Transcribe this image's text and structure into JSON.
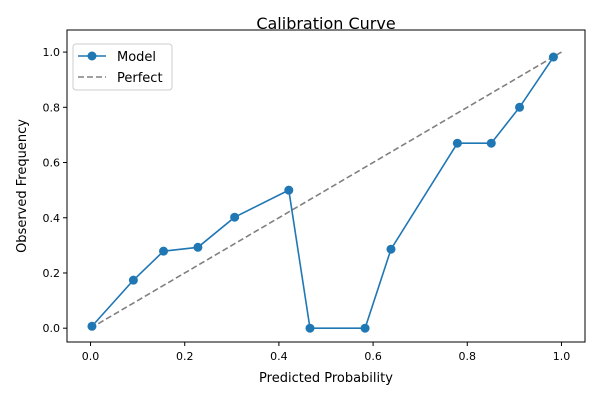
{
  "chart_data": {
    "type": "line",
    "title": "Calibration Curve",
    "xlabel": "Predicted Probability",
    "ylabel": "Observed Frequency",
    "xlim": [
      -0.05,
      1.05
    ],
    "ylim": [
      -0.05,
      1.08
    ],
    "xticks": [
      "0.0",
      "0.2",
      "0.4",
      "0.6",
      "0.8",
      "1.0"
    ],
    "yticks": [
      "0.0",
      "0.2",
      "0.4",
      "0.6",
      "0.8",
      "1.0"
    ],
    "grid": false,
    "legend_position": "top-left",
    "series": [
      {
        "name": "Model",
        "color": "#1f77b4",
        "style": "solid-with-circle-markers",
        "x": [
          0.003,
          0.091,
          0.155,
          0.228,
          0.306,
          0.421,
          0.466,
          0.583,
          0.638,
          0.779,
          0.851,
          0.911,
          0.983
        ],
        "y": [
          0.007,
          0.174,
          0.279,
          0.293,
          0.402,
          0.5,
          0.0,
          0.0,
          0.286,
          0.67,
          0.67,
          0.8,
          0.982
        ]
      },
      {
        "name": "Perfect",
        "color": "#808080",
        "style": "dashed",
        "x": [
          0,
          1
        ],
        "y": [
          0,
          1
        ]
      }
    ]
  }
}
